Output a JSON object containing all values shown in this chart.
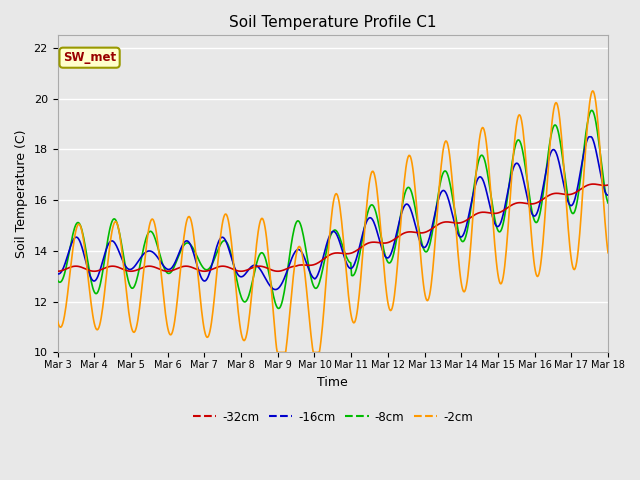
{
  "title": "Soil Temperature Profile C1",
  "xlabel": "Time",
  "ylabel": "Soil Temperature (C)",
  "ylim": [
    10,
    22.5
  ],
  "yticks": [
    10,
    12,
    14,
    16,
    18,
    20,
    22
  ],
  "fig_bg": "#e8e8e8",
  "plot_bg": "#e8e8e8",
  "annotation_text": "SW_met",
  "annotation_bg": "#ffffcc",
  "annotation_border": "#999900",
  "annotation_text_color": "#990000",
  "colors": {
    "-32cm": "#cc0000",
    "-16cm": "#0000cc",
    "-8cm": "#00bb00",
    "-2cm": "#ff9900"
  },
  "linewidth": 1.2,
  "xtick_labels": [
    "Mar 3",
    "Mar 4",
    "Mar 5",
    "Mar 6",
    "Mar 7",
    "Mar 8",
    "Mar 9",
    "Mar 10",
    "Mar 11",
    "Mar 12",
    "Mar 13",
    "Mar 14",
    "Mar 15",
    "Mar 16",
    "Mar 17",
    "Mar 18"
  ],
  "legend_colors": [
    "#cc0000",
    "#0000cc",
    "#00bb00",
    "#ff9900"
  ],
  "legend_labels": [
    "-32cm",
    "-16cm",
    "-8cm",
    "-2cm"
  ]
}
